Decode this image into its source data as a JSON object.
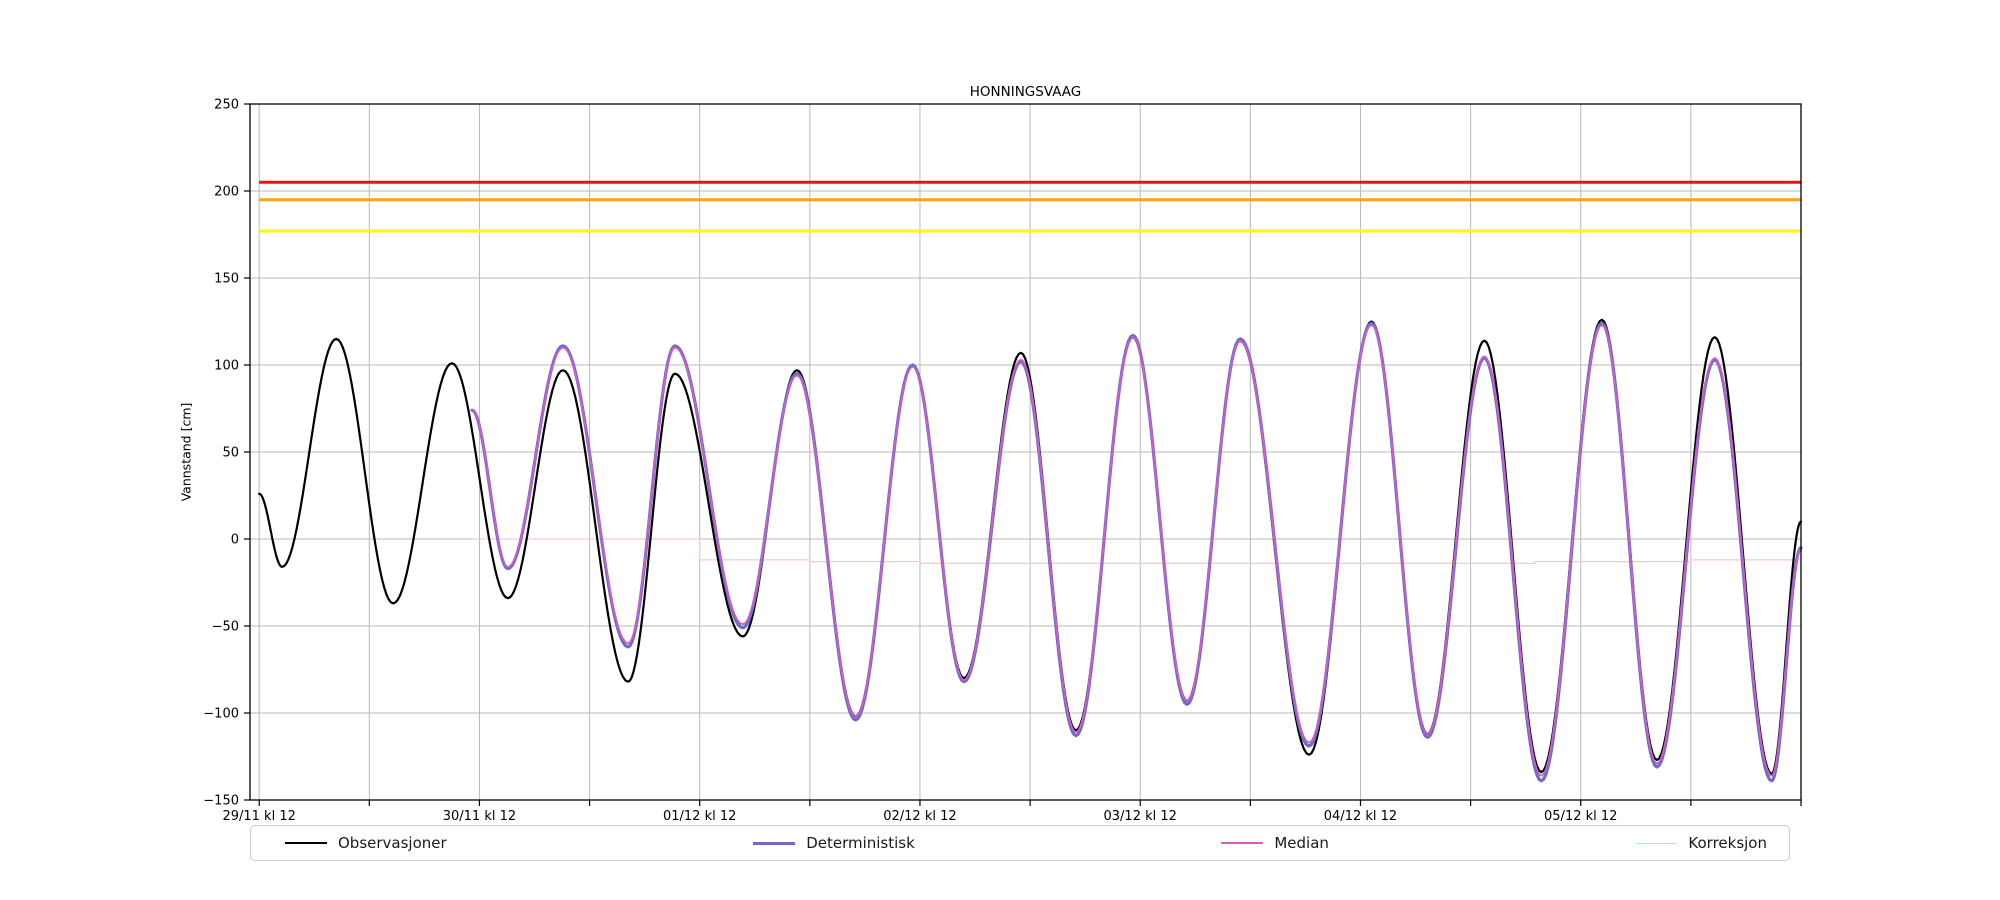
{
  "chart_data": {
    "type": "line",
    "title": "HONNINGSVAAG",
    "ylabel": "Vannstand [cm]",
    "xlabel": "",
    "ylim": [
      -150,
      250
    ],
    "xlim_hours_from_first_tick": [
      -1,
      168
    ],
    "grid": true,
    "legend_position": "bottom",
    "time_unit": "hours after 29/11 kl 12",
    "value_unit": "cm",
    "yticks": [
      {
        "v": -150,
        "label": "−150"
      },
      {
        "v": -100,
        "label": "−100"
      },
      {
        "v": -50,
        "label": "−50"
      },
      {
        "v": 0,
        "label": "0"
      },
      {
        "v": 50,
        "label": "50"
      },
      {
        "v": 100,
        "label": "100"
      },
      {
        "v": 150,
        "label": "150"
      },
      {
        "v": 200,
        "label": "200"
      },
      {
        "v": 250,
        "label": "250"
      }
    ],
    "xticks": [
      {
        "t": 0,
        "label": "29/11 kl 12"
      },
      {
        "t": 12,
        "label": ""
      },
      {
        "t": 24,
        "label": "30/11 kl 12"
      },
      {
        "t": 36,
        "label": ""
      },
      {
        "t": 48,
        "label": "01/12 kl 12"
      },
      {
        "t": 60,
        "label": ""
      },
      {
        "t": 72,
        "label": "02/12 kl 12"
      },
      {
        "t": 84,
        "label": ""
      },
      {
        "t": 96,
        "label": "03/12 kl 12"
      },
      {
        "t": 108,
        "label": ""
      },
      {
        "t": 120,
        "label": "04/12 kl 12"
      },
      {
        "t": 132,
        "label": ""
      },
      {
        "t": 144,
        "label": "05/12 kl 12"
      },
      {
        "t": 156,
        "label": ""
      },
      {
        "t": 168,
        "label": ""
      }
    ],
    "threshold_lines": [
      {
        "name": "red-warning-level",
        "value": 205,
        "color": "#f01010",
        "width": 3,
        "t0": 0,
        "t1": 168
      },
      {
        "name": "orange-warning-level",
        "value": 195,
        "color": "#ffa018",
        "width": 3,
        "t0": 0,
        "t1": 168
      },
      {
        "name": "yellow-warning-level",
        "value": 177,
        "color": "#fff320",
        "width": 3.2,
        "t0": 0,
        "t1": 168
      }
    ],
    "series": [
      {
        "name": "Observasjoner",
        "color": "#000000",
        "width": 2.2,
        "interp": "cosine",
        "points": [
          [
            0,
            26
          ],
          [
            2.5,
            -16
          ],
          [
            8.4,
            115
          ],
          [
            14.6,
            -37
          ],
          [
            21,
            101
          ],
          [
            27.1,
            -34
          ],
          [
            33.1,
            97
          ],
          [
            40.2,
            -82
          ],
          [
            45.3,
            95
          ],
          [
            52.7,
            -56
          ],
          [
            58.6,
            97
          ],
          [
            65,
            -102
          ],
          [
            71.2,
            100
          ],
          [
            76.8,
            -80
          ],
          [
            83,
            107
          ],
          [
            89,
            -110
          ],
          [
            95.2,
            116
          ],
          [
            101.1,
            -93
          ],
          [
            106.9,
            114
          ],
          [
            114.4,
            -124
          ],
          [
            121.2,
            125
          ],
          [
            127.3,
            -112
          ],
          [
            133.5,
            114
          ],
          [
            139.7,
            -134
          ],
          [
            146.3,
            126
          ],
          [
            152.3,
            -127
          ],
          [
            158.6,
            116
          ],
          [
            164.8,
            -135
          ],
          [
            168,
            10
          ]
        ]
      },
      {
        "name": "Deterministisk",
        "color": "#6f6bc8",
        "width": 3.2,
        "interp": "cosine",
        "points": [
          [
            23.2,
            74
          ],
          [
            27.1,
            -17
          ],
          [
            33.1,
            111
          ],
          [
            40.2,
            -62
          ],
          [
            45.3,
            111
          ],
          [
            52.7,
            -51
          ],
          [
            58.6,
            95
          ],
          [
            65,
            -104
          ],
          [
            71.2,
            100
          ],
          [
            76.8,
            -82
          ],
          [
            83,
            102
          ],
          [
            89,
            -113
          ],
          [
            95.2,
            117
          ],
          [
            101.1,
            -95
          ],
          [
            106.9,
            115
          ],
          [
            114.4,
            -119
          ],
          [
            121.2,
            124
          ],
          [
            127.3,
            -114
          ],
          [
            133.5,
            104
          ],
          [
            139.7,
            -139
          ],
          [
            146.3,
            124
          ],
          [
            152.3,
            -131
          ],
          [
            158.6,
            103
          ],
          [
            164.8,
            -139
          ],
          [
            168,
            -5
          ]
        ]
      },
      {
        "name": "Median",
        "color": "#cd5fc3",
        "width": 1.8,
        "interp": "cosine",
        "points": [
          [
            23.2,
            74
          ],
          [
            27.1,
            -16
          ],
          [
            33.1,
            110
          ],
          [
            40.2,
            -60
          ],
          [
            45.3,
            110
          ],
          [
            52.7,
            -49
          ],
          [
            58.6,
            94
          ],
          [
            65,
            -102
          ],
          [
            71.2,
            99
          ],
          [
            76.8,
            -81
          ],
          [
            83,
            103
          ],
          [
            89,
            -111
          ],
          [
            95.2,
            116
          ],
          [
            101.1,
            -93
          ],
          [
            106.9,
            114
          ],
          [
            114.4,
            -117
          ],
          [
            121.2,
            123
          ],
          [
            127.3,
            -112
          ],
          [
            133.5,
            105
          ],
          [
            139.7,
            -136
          ],
          [
            146.3,
            123
          ],
          [
            152.3,
            -129
          ],
          [
            158.6,
            104
          ],
          [
            164.8,
            -136
          ],
          [
            168,
            -6
          ]
        ]
      },
      {
        "name": "Korreksjon",
        "color": "#f9c9c6",
        "width": 1.2,
        "interp": "step",
        "segments": [
          [
            23.2,
            48,
            0
          ],
          [
            48,
            60,
            -12
          ],
          [
            60,
            72,
            -13
          ],
          [
            72,
            139,
            -14
          ],
          [
            139,
            156,
            -13
          ],
          [
            156,
            168,
            -12
          ]
        ]
      }
    ],
    "legend": {
      "entries": [
        {
          "label": "Observasjoner",
          "color": "#000000",
          "line_width": 2
        },
        {
          "label": "Deterministisk",
          "color": "#6f6bc8",
          "line_width": 3
        },
        {
          "label": "Median",
          "color": "#cd5fc3",
          "line_width": 2.5
        },
        {
          "label": "Korreksjon",
          "color": "#f9c9c6",
          "line_width": 1.5
        }
      ]
    },
    "colors": {
      "grid": "#b9b9b9",
      "axis": "#000000",
      "background": "#ffffff"
    }
  }
}
